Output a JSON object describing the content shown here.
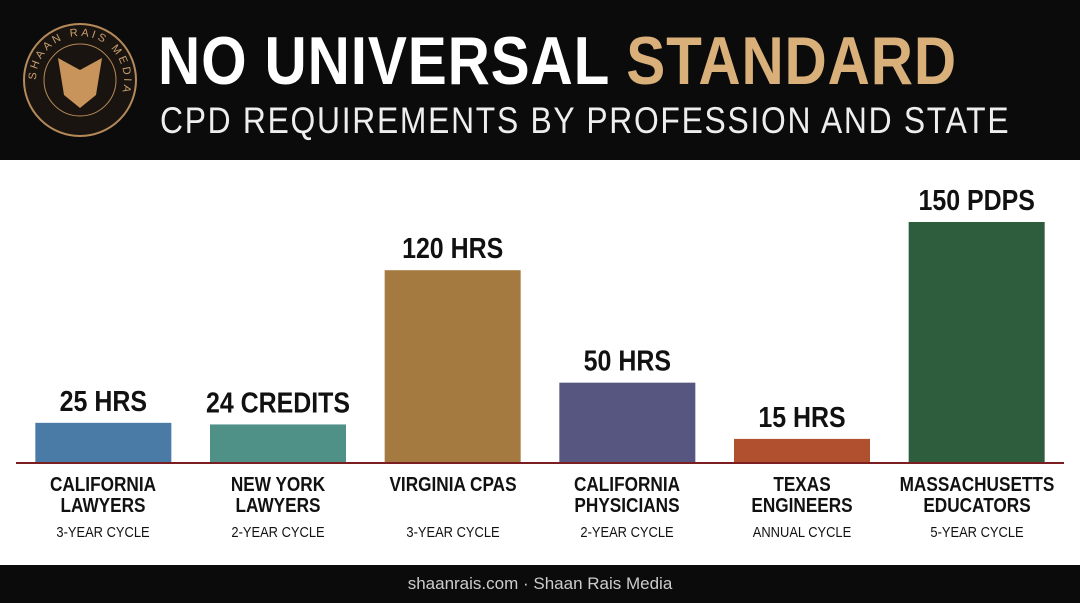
{
  "header": {
    "logo_text": "SHAAN RAIS MEDIA",
    "title": "NO UNIVERSAL",
    "title_highlight": "STANDARD",
    "subtitle": "CPD REQUIREMENTS BY PROFESSION AND STATE"
  },
  "chart_data": {
    "type": "bar",
    "categories": [
      "CALIFORNIA LAWYERS",
      "NEW YORK LAWYERS",
      "VIRGINIA CPAS",
      "CALIFORNIA PHYSICIANS",
      "TEXAS ENGINEERS",
      "MASSACHUSETTS EDUCATORS"
    ],
    "cycles": [
      "3-YEAR CYCLE",
      "2-YEAR CYCLE",
      "3-YEAR CYCLE",
      "2-YEAR CYCLE",
      "ANNUAL CYCLE",
      "5-YEAR CYCLE"
    ],
    "values": [
      25,
      24,
      120,
      50,
      15,
      150
    ],
    "value_labels": [
      "25 HRS",
      "24 CREDITS",
      "120 HRS",
      "50 HRS",
      "15 HRS",
      "150 PDPS"
    ],
    "colors": [
      "#4a7aa6",
      "#4f9087",
      "#a47a40",
      "#565680",
      "#b0502f",
      "#2e5d3d"
    ],
    "baseline_color": "#7a1e22"
  },
  "footer": {
    "text": "shaanrais.com · Shaan Rais Media"
  }
}
